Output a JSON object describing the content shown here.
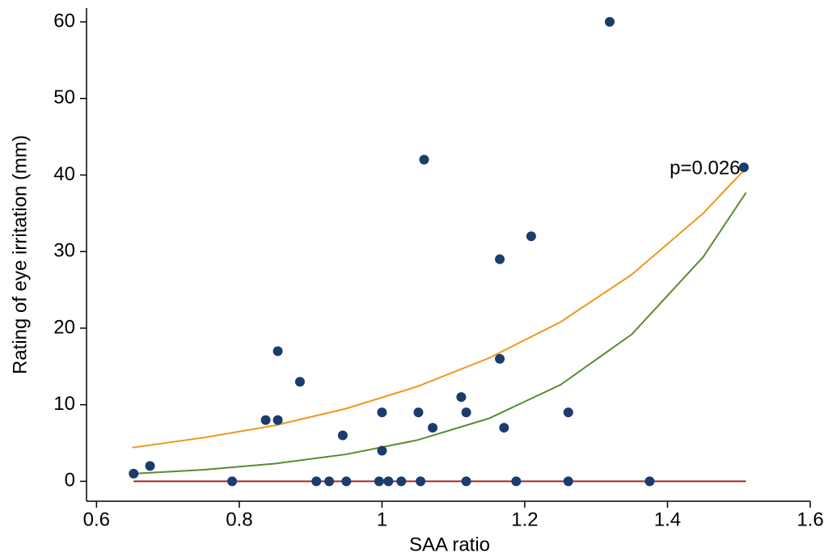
{
  "chart_data": {
    "type": "scatter",
    "xlabel": "SAA ratio",
    "ylabel": "Rating of eye irritation (mm)",
    "x": [
      0.652,
      0.675,
      0.79,
      0.837,
      0.854,
      0.854,
      0.885,
      0.908,
      0.926,
      0.945,
      0.95,
      0.996,
      1.0,
      1.0,
      1.009,
      1.027,
      1.051,
      1.054,
      1.059,
      1.071,
      1.111,
      1.118,
      1.118,
      1.165,
      1.165,
      1.171,
      1.188,
      1.209,
      1.261,
      1.261,
      1.319,
      1.375,
      1.507
    ],
    "values": [
      1,
      2,
      0,
      8,
      8,
      17,
      13,
      0,
      0,
      6,
      0,
      0,
      9,
      4,
      0,
      0,
      9,
      0,
      42,
      7,
      11,
      9,
      0,
      29,
      16,
      7,
      0,
      32,
      9,
      0,
      60,
      0,
      41
    ],
    "color": "#1a3c6e",
    "lines": [
      {
        "color": "#f0961e",
        "x": [
          0.65,
          0.75,
          0.85,
          0.95,
          1.05,
          1.15,
          1.25,
          1.35,
          1.45,
          1.51
        ],
        "values": [
          4.4,
          5.7,
          7.3,
          9.5,
          12.4,
          16.1,
          20.8,
          27.0,
          35.0,
          40.9
        ]
      },
      {
        "color": "#5a8a32",
        "x": [
          0.65,
          0.75,
          0.85,
          0.95,
          1.05,
          1.15,
          1.25,
          1.35,
          1.45,
          1.51
        ],
        "values": [
          0.99,
          1.51,
          2.31,
          3.53,
          5.39,
          8.22,
          12.6,
          19.2,
          29.3,
          37.7
        ]
      },
      {
        "color": "#a02828",
        "x": [
          0.652,
          1.51
        ],
        "values": [
          0,
          0
        ]
      }
    ],
    "annotation": {
      "text": "p=0.026",
      "x": 1.403,
      "y": 40.8
    },
    "xlim": [
      0.586,
      1.6
    ],
    "ylim": [
      -2.6,
      61.8
    ],
    "xticks": [
      0.6,
      0.8,
      1,
      1.2,
      1.4,
      1.6
    ],
    "yticks": [
      0,
      10,
      20,
      30,
      40,
      50,
      60
    ]
  }
}
